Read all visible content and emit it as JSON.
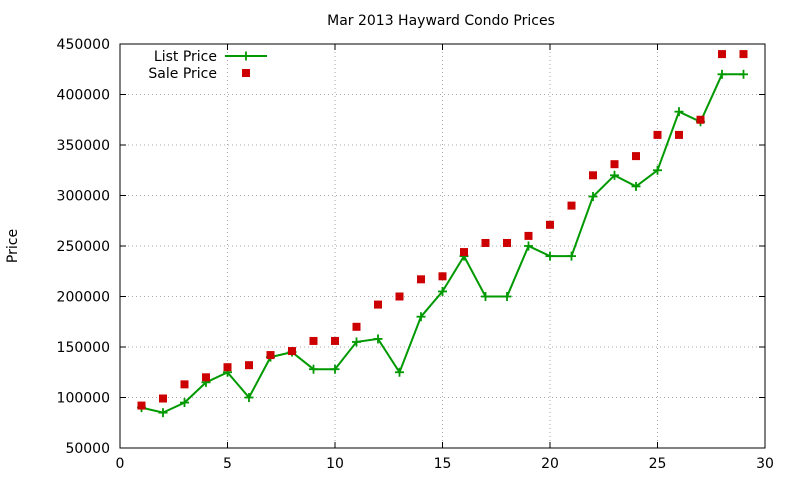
{
  "chart_data": {
    "type": "line",
    "title": "Mar 2013 Hayward Condo Prices",
    "xlabel": "",
    "ylabel": "Price",
    "xlim": [
      0,
      30
    ],
    "ylim": [
      50000,
      450000
    ],
    "xticks": [
      "0",
      "5",
      "10",
      "15",
      "20",
      "25",
      "30"
    ],
    "yticks": [
      "50000",
      "100000",
      "150000",
      "200000",
      "250000",
      "300000",
      "350000",
      "400000",
      "450000"
    ],
    "grid": true,
    "legend_position": "top-left",
    "series": [
      {
        "name": "List Price",
        "style": "line+cross",
        "color": "#009900",
        "x": [
          1,
          2,
          3,
          4,
          5,
          6,
          7,
          8,
          9,
          10,
          11,
          12,
          13,
          14,
          15,
          16,
          17,
          18,
          19,
          20,
          21,
          22,
          23,
          24,
          25,
          26,
          27,
          28,
          29
        ],
        "values": [
          90000,
          85000,
          95000,
          115000,
          125000,
          100000,
          140000,
          145000,
          128000,
          128000,
          155000,
          158000,
          125000,
          180000,
          205000,
          240000,
          200000,
          200000,
          250000,
          240000,
          240000,
          299000,
          320000,
          309000,
          325000,
          383000,
          373000,
          420000,
          420000
        ]
      },
      {
        "name": "Sale Price",
        "style": "square",
        "color": "#cc0000",
        "x": [
          1,
          2,
          3,
          4,
          5,
          6,
          7,
          8,
          9,
          10,
          11,
          12,
          13,
          14,
          15,
          16,
          17,
          18,
          19,
          20,
          21,
          22,
          23,
          24,
          25,
          26,
          27,
          28,
          29
        ],
        "values": [
          92000,
          99000,
          113000,
          120000,
          130000,
          132000,
          142000,
          146000,
          156000,
          156000,
          170000,
          192000,
          200000,
          217000,
          220000,
          244000,
          253000,
          253000,
          260000,
          271000,
          290000,
          320000,
          331000,
          339000,
          360000,
          360000,
          375000,
          440000,
          440000
        ]
      }
    ]
  }
}
